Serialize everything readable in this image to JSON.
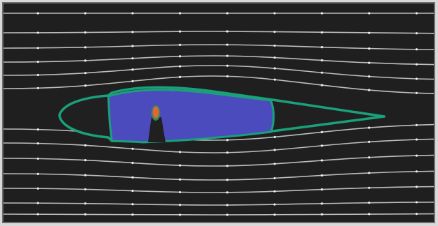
{
  "colors": {
    "background": "#1f1f1f",
    "frame": "#6c6c6c",
    "streamline": "#bdbdbd",
    "streamline_arrow": "#efefef",
    "airfoil_outline": "#1aa07a",
    "airfoil_fill": "#202020",
    "fuel_region": "#4b4bbd",
    "hot_spot": "#e3643a",
    "hot_spot_edge": "#2f8a55"
  },
  "icons": {
    "streamline": "streamline-curve",
    "airfoil": "airfoil-cross-section",
    "arrow": "flow-direction-arrow"
  }
}
